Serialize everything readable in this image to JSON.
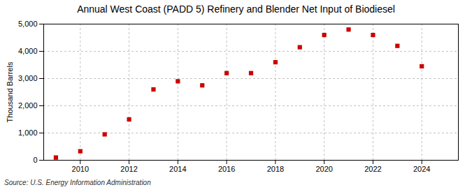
{
  "chart_data": {
    "type": "scatter",
    "title": "Annual West Coast (PADD 5) Refinery and Blender Net Input of Biodiesel",
    "ylabel": "Thousand Barrels",
    "source": "Source: U.S. Energy Information Administration",
    "x": [
      2009,
      2010,
      2011,
      2012,
      2013,
      2014,
      2015,
      2016,
      2017,
      2018,
      2019,
      2020,
      2021,
      2022,
      2023,
      2024
    ],
    "values": [
      100,
      330,
      950,
      1500,
      2600,
      2900,
      2750,
      3200,
      3200,
      3600,
      4150,
      4600,
      4800,
      4600,
      4200,
      3450
    ],
    "color": "#cc0000",
    "marker": "square",
    "xlim": [
      2008.5,
      2025.5
    ],
    "xticks": [
      2010,
      2012,
      2014,
      2016,
      2018,
      2020,
      2022,
      2024
    ],
    "ylim": [
      0,
      5000
    ],
    "yticks": [
      0,
      {
        "value": 1000,
        "label": "1,000"
      },
      {
        "value": 2000,
        "label": "2,000"
      },
      {
        "value": 3000,
        "label": "3,000"
      },
      {
        "value": 4000,
        "label": "4,000"
      },
      {
        "value": 5000,
        "label": "5,000"
      }
    ],
    "grid": true
  }
}
